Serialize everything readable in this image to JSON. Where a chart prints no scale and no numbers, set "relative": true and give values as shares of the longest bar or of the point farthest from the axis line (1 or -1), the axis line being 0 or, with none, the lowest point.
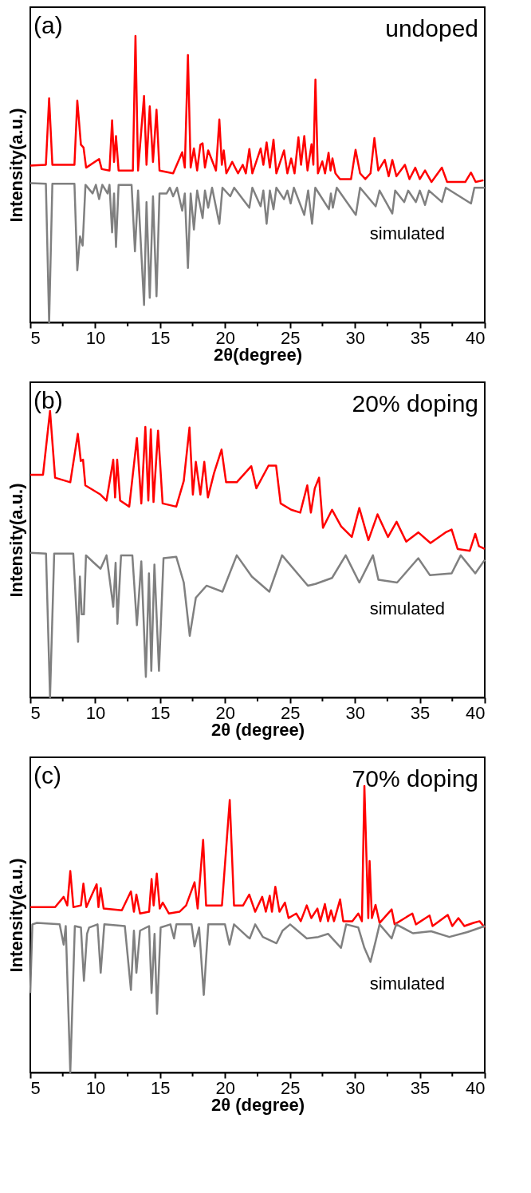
{
  "chart_data": [
    {
      "type": "line",
      "relative": true,
      "xlabel": "2θ(degree)",
      "ylabel": "Intensity(a.u.)",
      "xlim": [
        5,
        40
      ],
      "xticks": [
        5,
        {
          "value": 7.5,
          "label": null
        },
        10,
        {
          "value": 12.5,
          "label": null
        },
        15,
        {
          "value": 17.5,
          "label": null
        },
        20,
        {
          "value": 22.5,
          "label": null
        },
        25,
        {
          "value": 27.5,
          "label": null
        },
        30,
        {
          "value": 32.5,
          "label": null
        },
        35,
        {
          "value": 37.5,
          "label": null
        },
        40
      ],
      "grid": false,
      "legend": false,
      "annotations": [
        "(a)",
        "undoped"
      ],
      "series": [
        {
          "color": "#ff0000",
          "x": [
            5.0,
            6.2,
            6.45,
            6.7,
            8.4,
            8.62,
            8.9,
            9.1,
            9.3,
            10.3,
            10.5,
            11.1,
            11.3,
            11.45,
            11.6,
            11.8,
            12.9,
            13.1,
            13.3,
            13.76,
            13.95,
            14.2,
            14.45,
            14.72,
            14.95,
            16.0,
            16.7,
            16.9,
            17.14,
            17.35,
            17.6,
            17.85,
            18.1,
            18.27,
            18.45,
            18.7,
            19.3,
            19.56,
            19.75,
            19.9,
            20.1,
            20.55,
            21.0,
            21.36,
            21.6,
            21.87,
            22.1,
            22.74,
            22.95,
            23.2,
            23.45,
            23.73,
            23.95,
            24.54,
            24.8,
            25.09,
            25.35,
            25.65,
            25.85,
            26.1,
            26.35,
            26.66,
            26.8,
            26.96,
            27.15,
            27.49,
            27.7,
            27.97,
            28.12,
            28.27,
            28.5,
            28.85,
            29.7,
            30.05,
            30.4,
            30.8,
            31.2,
            31.5,
            31.8,
            32.3,
            32.6,
            32.88,
            33.2,
            33.85,
            34.2,
            34.65,
            35.0,
            35.4,
            35.9,
            36.7,
            37.1,
            38.5,
            38.94,
            39.3,
            39.9
          ],
          "values": [
            0.547,
            0.55,
            0.782,
            0.55,
            0.55,
            0.774,
            0.62,
            0.61,
            0.54,
            0.57,
            0.535,
            0.53,
            0.705,
            0.56,
            0.65,
            0.53,
            0.53,
            1.0,
            0.53,
            0.79,
            0.55,
            0.754,
            0.56,
            0.742,
            0.53,
            0.52,
            0.594,
            0.54,
            0.933,
            0.54,
            0.607,
            0.53,
            0.62,
            0.625,
            0.54,
            0.6,
            0.53,
            0.708,
            0.55,
            0.6,
            0.52,
            0.56,
            0.52,
            0.55,
            0.52,
            0.605,
            0.52,
            0.607,
            0.55,
            0.628,
            0.54,
            0.638,
            0.52,
            0.6,
            0.52,
            0.572,
            0.52,
            0.646,
            0.55,
            0.65,
            0.53,
            0.622,
            0.55,
            0.847,
            0.52,
            0.562,
            0.52,
            0.592,
            0.53,
            0.572,
            0.52,
            0.5,
            0.5,
            0.602,
            0.52,
            0.5,
            0.52,
            0.643,
            0.53,
            0.567,
            0.51,
            0.567,
            0.51,
            0.55,
            0.5,
            0.54,
            0.5,
            0.53,
            0.49,
            0.54,
            0.49,
            0.49,
            0.523,
            0.49,
            0.496
          ]
        },
        {
          "name": "simulated",
          "color": "#808080",
          "x": [
            5.0,
            6.2,
            6.45,
            6.7,
            8.4,
            8.62,
            8.83,
            9.03,
            9.25,
            9.8,
            10.05,
            10.3,
            10.55,
            10.95,
            11.1,
            11.3,
            11.45,
            11.6,
            11.8,
            12.8,
            13.06,
            13.3,
            13.76,
            13.95,
            14.2,
            14.45,
            14.72,
            14.95,
            15.5,
            15.75,
            16.0,
            16.3,
            16.7,
            16.9,
            17.14,
            17.35,
            17.6,
            17.85,
            18.27,
            18.45,
            18.7,
            19.0,
            19.56,
            19.8,
            20.4,
            20.7,
            21.87,
            22.1,
            22.74,
            22.95,
            23.2,
            23.45,
            23.73,
            23.95,
            24.54,
            24.8,
            25.05,
            25.3,
            26.1,
            26.4,
            26.7,
            26.95,
            28.0,
            28.15,
            28.3,
            28.6,
            30.07,
            30.4,
            31.6,
            31.9,
            32.88,
            33.1,
            33.8,
            34.1,
            34.7,
            35.0,
            35.4,
            35.7,
            36.7,
            37.0,
            38.94,
            39.2,
            40.0
          ],
          "values": [
            0.486,
            0.484,
            0,
            0.484,
            0.484,
            0.182,
            0.3,
            0.268,
            0.48,
            0.45,
            0.48,
            0.43,
            0.48,
            0.45,
            0.48,
            0.314,
            0.45,
            0.263,
            0.48,
            0.48,
            0.248,
            0.46,
            0.061,
            0.42,
            0.086,
            0.44,
            0.091,
            0.45,
            0.45,
            0.47,
            0.44,
            0.47,
            0.39,
            0.45,
            0.19,
            0.45,
            0.324,
            0.46,
            0.364,
            0.46,
            0.4,
            0.47,
            0.344,
            0.47,
            0.44,
            0.47,
            0.4,
            0.47,
            0.405,
            0.46,
            0.344,
            0.46,
            0.395,
            0.47,
            0.43,
            0.46,
            0.415,
            0.47,
            0.375,
            0.46,
            0.344,
            0.47,
            0.395,
            0.45,
            0.4,
            0.47,
            0.375,
            0.47,
            0.405,
            0.46,
            0.38,
            0.46,
            0.42,
            0.46,
            0.42,
            0.46,
            0.41,
            0.46,
            0.42,
            0.47,
            0.415,
            0.47,
            0.47
          ]
        }
      ]
    },
    {
      "type": "line",
      "relative": true,
      "xlabel": "2θ (degree)",
      "ylabel": "Intensity(a.u.)",
      "xlim": [
        5,
        40
      ],
      "xticks": [
        5,
        {
          "value": 7.5,
          "label": null
        },
        10,
        {
          "value": 12.5,
          "label": null
        },
        15,
        {
          "value": 17.5,
          "label": null
        },
        20,
        {
          "value": 22.5,
          "label": null
        },
        25,
        {
          "value": 27.5,
          "label": null
        },
        30,
        {
          "value": 32.5,
          "label": null
        },
        35,
        {
          "value": 37.5,
          "label": null
        },
        40
      ],
      "grid": false,
      "legend": false,
      "annotations": [
        "(b)",
        "20% doping"
      ],
      "series": [
        {
          "color": "#ff0000",
          "x": [
            5.0,
            5.98,
            6.52,
            6.91,
            8.08,
            8.66,
            8.89,
            9.06,
            9.24,
            10.41,
            10.87,
            11.39,
            11.53,
            11.69,
            11.92,
            12.62,
            13.21,
            13.55,
            13.86,
            14.09,
            14.28,
            14.49,
            14.84,
            15.19,
            16.24,
            16.82,
            17.26,
            17.52,
            17.75,
            18.1,
            18.4,
            18.68,
            19.15,
            19.73,
            20.08,
            20.9,
            22.02,
            22.41,
            23.35,
            23.93,
            24.28,
            25.09,
            25.79,
            26.33,
            26.61,
            26.91,
            27.24,
            27.54,
            28.24,
            28.94,
            29.76,
            30.34,
            31.04,
            31.74,
            32.55,
            33.21,
            33.95,
            34.88,
            35.82,
            36.98,
            37.45,
            37.91,
            38.85,
            39.27,
            39.55,
            40.0
          ],
          "values": [
            0.777,
            0.777,
            1.0,
            0.767,
            0.751,
            0.92,
            0.825,
            0.83,
            0.74,
            0.708,
            0.687,
            0.83,
            0.698,
            0.83,
            0.687,
            0.666,
            0.905,
            0.677,
            0.944,
            0.687,
            0.936,
            0.682,
            0.931,
            0.677,
            0.666,
            0.756,
            0.942,
            0.708,
            0.822,
            0.708,
            0.822,
            0.698,
            0.783,
            0.865,
            0.751,
            0.751,
            0.807,
            0.73,
            0.809,
            0.809,
            0.677,
            0.655,
            0.645,
            0.74,
            0.645,
            0.73,
            0.767,
            0.592,
            0.655,
            0.597,
            0.56,
            0.661,
            0.549,
            0.639,
            0.56,
            0.613,
            0.544,
            0.576,
            0.539,
            0.576,
            0.586,
            0.518,
            0.512,
            0.571,
            0.528,
            0.518
          ]
        },
        {
          "name": "simulated",
          "color": "#808080",
          "x": [
            5.0,
            6.21,
            6.52,
            6.84,
            8.31,
            8.68,
            8.82,
            8.96,
            9.13,
            9.29,
            9.9,
            10.41,
            10.87,
            11.39,
            11.57,
            11.71,
            11.99,
            12.86,
            13.21,
            13.55,
            13.9,
            14.14,
            14.32,
            14.56,
            14.91,
            15.26,
            16.24,
            16.82,
            17.28,
            17.75,
            18.57,
            19.8,
            20.9,
            22.06,
            23.41,
            24.39,
            26.38,
            26.96,
            28.24,
            29.29,
            30.34,
            31.39,
            31.81,
            33.25,
            34.88,
            35.77,
            37.45,
            38.15,
            39.27,
            40.0
          ],
          "values": [
            0.505,
            0.502,
            0,
            0.502,
            0.502,
            0.194,
            0.422,
            0.29,
            0.29,
            0.496,
            0.47,
            0.449,
            0.496,
            0.316,
            0.47,
            0.257,
            0.496,
            0.496,
            0.252,
            0.475,
            0.072,
            0.433,
            0.093,
            0.464,
            0.093,
            0.486,
            0.491,
            0.401,
            0.215,
            0.348,
            0.39,
            0.369,
            0.496,
            0.422,
            0.369,
            0.496,
            0.39,
            0.396,
            0.417,
            0.496,
            0.401,
            0.496,
            0.411,
            0.401,
            0.486,
            0.427,
            0.433,
            0.496,
            0.433,
            0.48
          ]
        }
      ]
    },
    {
      "type": "line",
      "relative": true,
      "xlabel": "2θ (degree)",
      "ylabel": "Intensity(a.u.)",
      "xlim": [
        5,
        40
      ],
      "xticks": [
        5,
        {
          "value": 7.5,
          "label": null
        },
        10,
        {
          "value": 12.5,
          "label": null
        },
        15,
        {
          "value": 17.5,
          "label": null
        },
        20,
        {
          "value": 22.5,
          "label": null
        },
        25,
        {
          "value": 27.5,
          "label": null
        },
        30,
        {
          "value": 32.5,
          "label": null
        },
        35,
        {
          "value": 37.5,
          "label": null
        },
        40
      ],
      "grid": false,
      "legend": false,
      "annotations": [
        "(c)",
        "70% doping"
      ],
      "series": [
        {
          "color": "#ff0000",
          "x": [
            5.0,
            6.91,
            7.57,
            7.85,
            8.08,
            8.32,
            8.9,
            9.09,
            9.32,
            10.11,
            10.25,
            10.42,
            10.65,
            12.05,
            12.75,
            12.98,
            13.17,
            13.45,
            14.15,
            14.34,
            14.5,
            14.74,
            14.97,
            15.2,
            15.67,
            16.49,
            17.0,
            17.65,
            17.89,
            18.31,
            18.54,
            19.76,
            20.36,
            20.69,
            21.39,
            21.86,
            22.32,
            22.86,
            23.14,
            23.44,
            23.61,
            23.87,
            24.19,
            24.61,
            24.89,
            25.48,
            25.83,
            26.29,
            26.64,
            27.11,
            27.34,
            27.69,
            27.93,
            28.16,
            28.39,
            28.86,
            29.1,
            29.8,
            30.26,
            30.54,
            30.73,
            30.89,
            31.03,
            31.13,
            31.31,
            31.59,
            31.9,
            32.83,
            33.06,
            34.42,
            34.7,
            35.75,
            35.98,
            37.15,
            37.5,
            37.97,
            38.43,
            39.13,
            39.6,
            40.0
          ],
          "values": [
            0.577,
            0.577,
            0.613,
            0.583,
            0.703,
            0.577,
            0.583,
            0.659,
            0.577,
            0.657,
            0.577,
            0.643,
            0.572,
            0.566,
            0.632,
            0.561,
            0.621,
            0.555,
            0.561,
            0.675,
            0.583,
            0.694,
            0.572,
            0.593,
            0.555,
            0.561,
            0.583,
            0.664,
            0.572,
            0.812,
            0.583,
            0.583,
            0.951,
            0.583,
            0.583,
            0.621,
            0.561,
            0.613,
            0.561,
            0.617,
            0.561,
            0.648,
            0.561,
            0.593,
            0.539,
            0.555,
            0.528,
            0.583,
            0.539,
            0.572,
            0.528,
            0.588,
            0.528,
            0.566,
            0.528,
            0.604,
            0.528,
            0.528,
            0.555,
            0.528,
            1.0,
            0.752,
            0.539,
            0.738,
            0.539,
            0.585,
            0.522,
            0.569,
            0.517,
            0.555,
            0.517,
            0.548,
            0.511,
            0.55,
            0.511,
            0.539,
            0.511,
            0.522,
            0.528,
            0.506
          ]
        },
        {
          "name": "simulated",
          "color": "#808080",
          "x": [
            5.0,
            5.16,
            5.51,
            7.26,
            7.57,
            7.73,
            8.08,
            8.43,
            8.9,
            9.13,
            9.37,
            9.53,
            10.18,
            10.42,
            10.7,
            12.28,
            12.75,
            12.98,
            13.17,
            13.45,
            14.15,
            14.34,
            14.57,
            14.76,
            15.04,
            15.79,
            16.07,
            16.25,
            17.42,
            17.65,
            18.0,
            18.36,
            18.71,
            19.99,
            20.34,
            20.69,
            21.74,
            21.9,
            22.32,
            22.91,
            23.96,
            24.43,
            25.01,
            26.29,
            27.18,
            27.93,
            28.93,
            29.33,
            30.26,
            30.73,
            31.2,
            31.59,
            31.9,
            32.83,
            33.18,
            34.47,
            35.87,
            37.27,
            38.67,
            40.0
          ],
          "values": [
            0.277,
            0.517,
            0.522,
            0.517,
            0.446,
            0.511,
            0,
            0.511,
            0.506,
            0.32,
            0.484,
            0.506,
            0.517,
            0.348,
            0.517,
            0.511,
            0.288,
            0.495,
            0.348,
            0.495,
            0.511,
            0.277,
            0.484,
            0.205,
            0.506,
            0.517,
            0.468,
            0.517,
            0.517,
            0.44,
            0.506,
            0.271,
            0.517,
            0.517,
            0.446,
            0.517,
            0.473,
            0.468,
            0.517,
            0.473,
            0.451,
            0.495,
            0.517,
            0.468,
            0.473,
            0.484,
            0.435,
            0.517,
            0.506,
            0.435,
            0.386,
            0.457,
            0.517,
            0.468,
            0.517,
            0.486,
            0.493,
            0.473,
            0.49,
            0.511
          ]
        }
      ]
    }
  ]
}
